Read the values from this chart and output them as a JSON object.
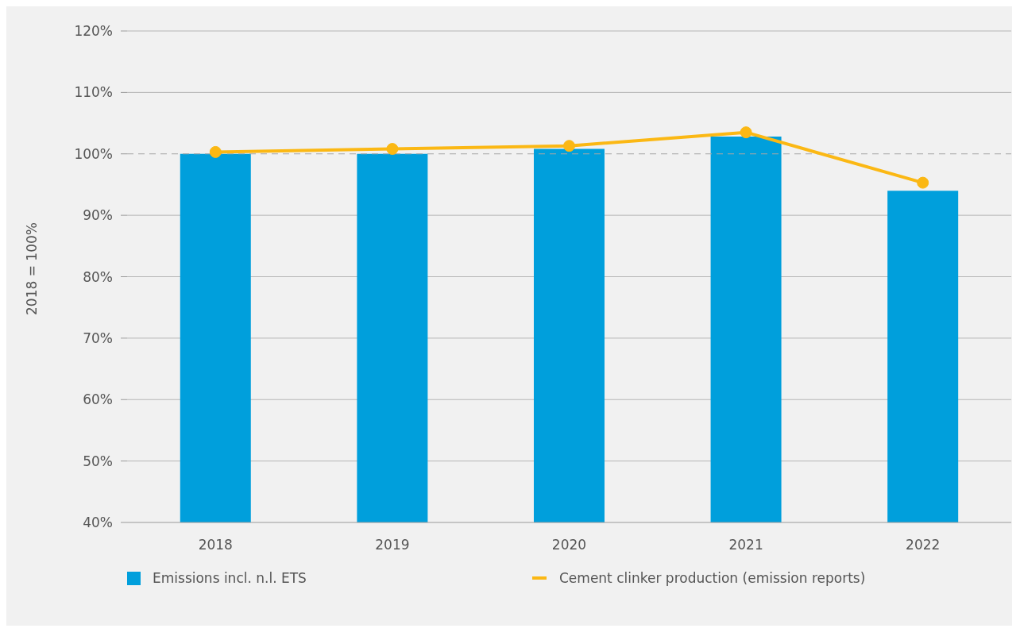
{
  "chart_data": {
    "type": "bar",
    "ylabel": "2018 = 100%",
    "categories": [
      "2018",
      "2019",
      "2020",
      "2021",
      "2022"
    ],
    "series": [
      {
        "name": "Emissions incl. n.l. ETS",
        "color": "#009fdc",
        "values": [
          100.0,
          100.0,
          100.8,
          102.8,
          94.0
        ]
      },
      {
        "name": "Cement clinker production (emission reports)",
        "type": "line",
        "color": "#fbb814",
        "values": [
          100.3,
          100.8,
          101.3,
          103.5,
          95.3
        ]
      }
    ],
    "ylim": [
      40,
      120
    ],
    "yticks": [
      {
        "value": 40,
        "label": "40%"
      },
      {
        "value": 50,
        "label": "50%"
      },
      {
        "value": 60,
        "label": "60%"
      },
      {
        "value": 70,
        "label": "70%"
      },
      {
        "value": 80,
        "label": "80%"
      },
      {
        "value": 90,
        "label": "90%"
      },
      {
        "value": 100,
        "label": "100%"
      },
      {
        "value": 110,
        "label": "110%"
      },
      {
        "value": 120,
        "label": "120%"
      }
    ],
    "ref_lines": [
      {
        "axis": "y",
        "value": 100,
        "color": "#a6a6a6",
        "line_style": "dashed"
      }
    ],
    "grid": "y",
    "legend": "bottom",
    "marker": "circle"
  }
}
